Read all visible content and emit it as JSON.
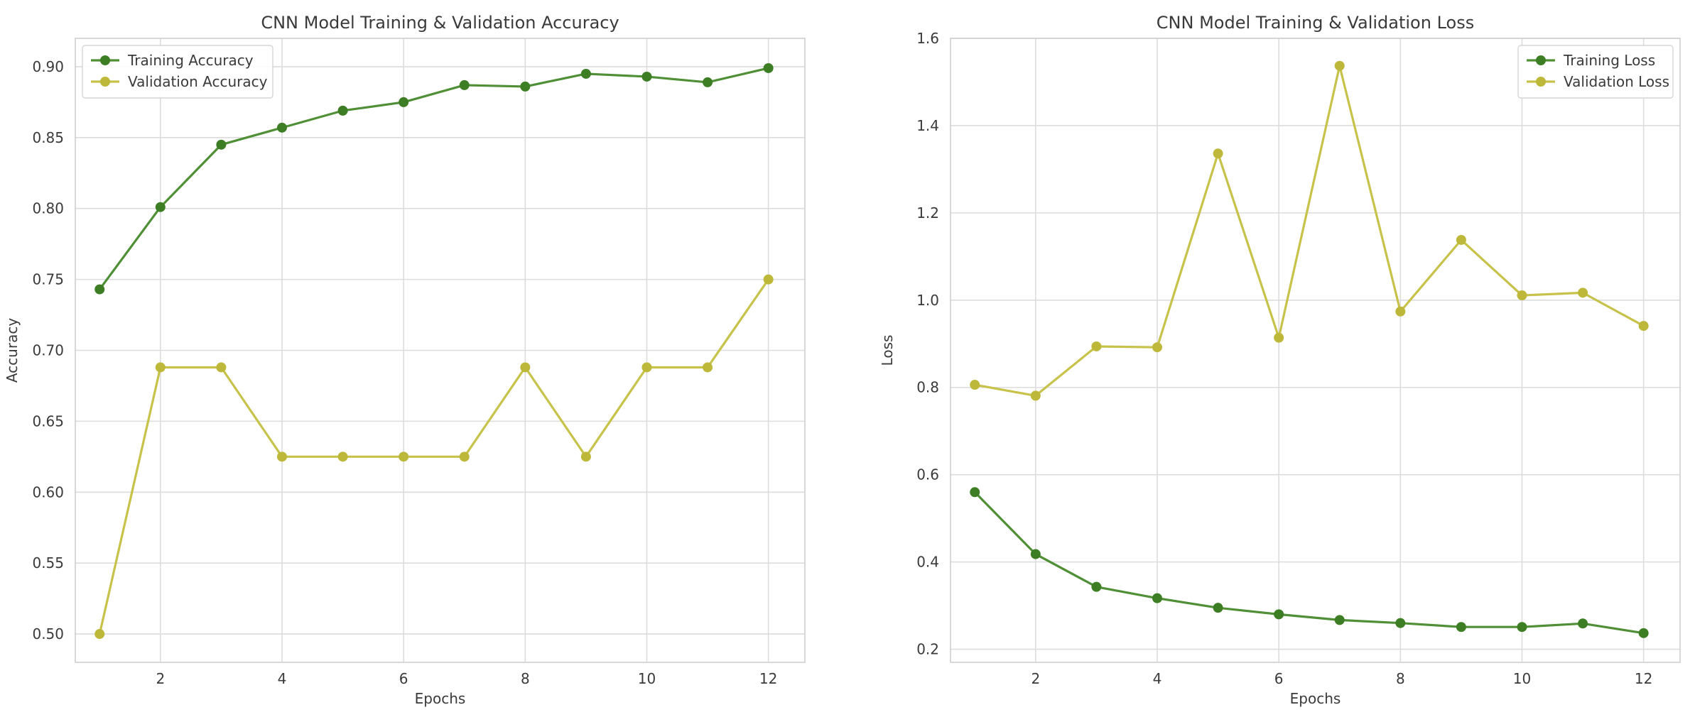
{
  "chart_data": [
    {
      "type": "line",
      "title": "CNN Model Training & Validation Accuracy",
      "xlabel": "Epochs",
      "ylabel": "Accuracy",
      "x": [
        1,
        2,
        3,
        4,
        5,
        6,
        7,
        8,
        9,
        10,
        11,
        12
      ],
      "xlim": [
        0.6,
        12.6
      ],
      "ylim": [
        0.48,
        0.92
      ],
      "x_ticks": [
        2,
        4,
        6,
        8,
        10,
        12
      ],
      "x_tick_labels": [
        "2",
        "4",
        "6",
        "8",
        "10",
        "12"
      ],
      "y_ticks": [
        0.5,
        0.55,
        0.6,
        0.65,
        0.7,
        0.75,
        0.8,
        0.85,
        0.9
      ],
      "y_tick_labels": [
        "0.50",
        "0.55",
        "0.60",
        "0.65",
        "0.70",
        "0.75",
        "0.80",
        "0.85",
        "0.90"
      ],
      "grid": true,
      "legend_position": "top-left",
      "series": [
        {
          "name": "Training Accuracy",
          "color": "#4f8f35",
          "marker_color": "#3d7d24",
          "values": [
            0.743,
            0.801,
            0.845,
            0.857,
            0.869,
            0.875,
            0.887,
            0.886,
            0.895,
            0.893,
            0.889,
            0.899
          ]
        },
        {
          "name": "Validation Accuracy",
          "color": "#c6c24a",
          "marker_color": "#bdb83a",
          "values": [
            0.5,
            0.688,
            0.688,
            0.625,
            0.625,
            0.625,
            0.625,
            0.688,
            0.625,
            0.688,
            0.688,
            0.75
          ]
        }
      ]
    },
    {
      "type": "line",
      "title": "CNN Model Training & Validation Loss",
      "xlabel": "Epochs",
      "ylabel": "Loss",
      "x": [
        1,
        2,
        3,
        4,
        5,
        6,
        7,
        8,
        9,
        10,
        11,
        12
      ],
      "xlim": [
        0.6,
        12.6
      ],
      "ylim": [
        0.17,
        1.6
      ],
      "x_ticks": [
        2,
        4,
        6,
        8,
        10,
        12
      ],
      "x_tick_labels": [
        "2",
        "4",
        "6",
        "8",
        "10",
        "12"
      ],
      "y_ticks": [
        0.2,
        0.4,
        0.6,
        0.8,
        1.0,
        1.2,
        1.4,
        1.6
      ],
      "y_tick_labels": [
        "0.2",
        "0.4",
        "0.6",
        "0.8",
        "1.0",
        "1.2",
        "1.4",
        "1.6"
      ],
      "grid": true,
      "legend_position": "top-right",
      "series": [
        {
          "name": "Training Loss",
          "color": "#4f8f35",
          "marker_color": "#3d7d24",
          "values": [
            0.56,
            0.418,
            0.343,
            0.317,
            0.295,
            0.28,
            0.267,
            0.26,
            0.251,
            0.251,
            0.259,
            0.237
          ]
        },
        {
          "name": "Validation Loss",
          "color": "#c6c24a",
          "marker_color": "#bdb83a",
          "values": [
            0.806,
            0.781,
            0.894,
            0.892,
            1.336,
            0.914,
            1.537,
            0.974,
            1.138,
            1.011,
            1.017,
            0.941
          ]
        }
      ]
    }
  ]
}
